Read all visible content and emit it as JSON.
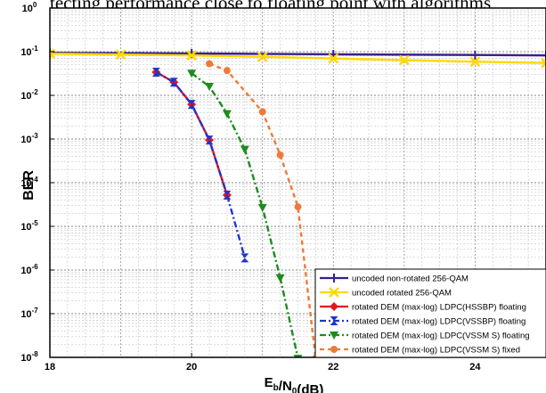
{
  "page": {
    "top_caption": "tecting performance close to floating point with algorithms"
  },
  "chart_data": {
    "type": "line",
    "xlabel": "E_b/N_0(dB)",
    "ylabel": "BER",
    "xlim": [
      18,
      25
    ],
    "ylim_log10": [
      -8,
      0
    ],
    "x_scale": "linear",
    "y_scale": "log",
    "grid": true,
    "legend_placement": "bottom-right",
    "x_ticks": [
      18,
      20,
      22,
      24
    ],
    "y_ticks": [
      {
        "base": "10",
        "exp": "0",
        "value": 1
      },
      {
        "base": "10",
        "exp": "-1",
        "value": 0.1
      },
      {
        "base": "10",
        "exp": "-2",
        "value": 0.01
      },
      {
        "base": "10",
        "exp": "-3",
        "value": 0.001
      },
      {
        "base": "10",
        "exp": "-4",
        "value": 0.0001
      },
      {
        "base": "10",
        "exp": "-5",
        "value": 1e-05
      },
      {
        "base": "10",
        "exp": "-6",
        "value": 1e-06
      },
      {
        "base": "10",
        "exp": "-7",
        "value": 1e-07
      },
      {
        "base": "10",
        "exp": "-8",
        "value": 1e-08
      }
    ],
    "series": [
      {
        "name": "uncoded non-rotated 256-QAM",
        "color": "#3b1f8f",
        "marker": "plus",
        "line": "solid",
        "x": [
          18,
          20,
          22,
          24,
          25
        ],
        "y": [
          0.094,
          0.091,
          0.087,
          0.084,
          0.082
        ]
      },
      {
        "name": "uncoded rotated 256-QAM",
        "color": "#ffd800",
        "marker": "x",
        "line": "solid",
        "x": [
          18,
          19,
          20,
          21,
          22,
          23,
          24,
          25
        ],
        "y": [
          0.09,
          0.086,
          0.082,
          0.076,
          0.07,
          0.064,
          0.059,
          0.055
        ]
      },
      {
        "name": "rotated DEM (max-log) LDPC(HSSBP) floating",
        "color": "#e8141e",
        "marker": "diamond",
        "line": "solid",
        "x": [
          19.5,
          19.75,
          20,
          20.25,
          20.5
        ],
        "y": [
          0.034,
          0.02,
          0.0062,
          0.00095,
          5.2e-05
        ]
      },
      {
        "name": "rotated DEM (max-log) LDPC(VSSBP) floating",
        "color": "#1f35cc",
        "marker": "hourglass",
        "line": "dash-dot",
        "x": [
          19.5,
          19.75,
          20,
          20.25,
          20.5,
          20.75
        ],
        "y": [
          0.034,
          0.02,
          0.0062,
          0.00095,
          5.2e-05,
          1.9e-06
        ]
      },
      {
        "name": "rotated DEM (max-log) LDPC(VSSM S) floating",
        "color": "#1e8c1e",
        "marker": "triangle-down",
        "line": "dash-dot",
        "x": [
          20,
          20.25,
          20.5,
          20.75,
          21,
          21.25,
          21.5
        ],
        "y": [
          0.032,
          0.016,
          0.0038,
          0.00058,
          2.7e-05,
          6.6e-07,
          9.5e-09
        ]
      },
      {
        "name": "rotated DEM (max-log) LDPC(VSSM S) fixed",
        "color": "#ee7a3a",
        "marker": "circle",
        "line": "dashed",
        "x": [
          20.25,
          20.5,
          21,
          21.25,
          21.5,
          21.75
        ],
        "y": [
          0.053,
          0.037,
          0.0042,
          0.00043,
          2.8e-05,
          9.5e-09
        ]
      }
    ]
  }
}
